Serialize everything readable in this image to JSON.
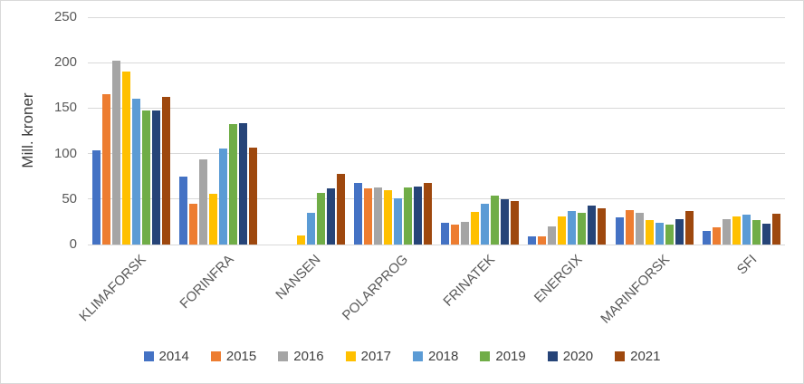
{
  "chart_data": {
    "type": "bar",
    "title": "",
    "xlabel": "",
    "ylabel": "Mill. kroner",
    "ylim": [
      0,
      250
    ],
    "yticks": [
      0,
      50,
      100,
      150,
      200,
      250
    ],
    "grid": true,
    "legend_position": "bottom",
    "categories": [
      "KLIMAFORSK",
      "FORINFRA",
      "NANSEN",
      "POLARPROG",
      "FRINATEK",
      "ENERGIX",
      "MARINFORSK",
      "SFI"
    ],
    "series": [
      {
        "name": "2014",
        "color": "#4472C4",
        "values": [
          104,
          75,
          0,
          68,
          24,
          9,
          30,
          15
        ]
      },
      {
        "name": "2015",
        "color": "#ED7D31",
        "values": [
          165,
          45,
          0,
          62,
          22,
          9,
          38,
          19
        ]
      },
      {
        "name": "2016",
        "color": "#A5A5A5",
        "values": [
          202,
          94,
          0,
          63,
          25,
          20,
          35,
          28
        ]
      },
      {
        "name": "2017",
        "color": "#FFC000",
        "values": [
          190,
          56,
          10,
          60,
          36,
          31,
          27,
          31
        ]
      },
      {
        "name": "2018",
        "color": "#5B9BD5",
        "values": [
          160,
          106,
          35,
          51,
          45,
          37,
          24,
          33
        ]
      },
      {
        "name": "2019",
        "color": "#70AD47",
        "values": [
          147,
          133,
          57,
          63,
          54,
          35,
          22,
          27
        ]
      },
      {
        "name": "2020",
        "color": "#264478",
        "values": [
          147,
          134,
          62,
          64,
          50,
          43,
          28,
          23
        ]
      },
      {
        "name": "2021",
        "color": "#9E480E",
        "values": [
          162,
          107,
          78,
          68,
          48,
          40,
          37,
          34
        ]
      }
    ]
  }
}
